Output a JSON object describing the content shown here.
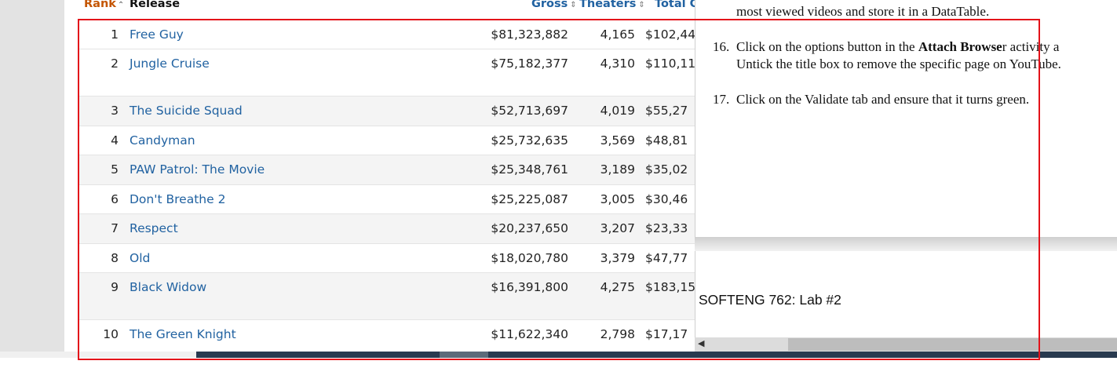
{
  "table": {
    "headers": {
      "rank": "Rank",
      "release": "Release",
      "gross": "Gross",
      "theaters": "Theaters",
      "total": "Total G"
    },
    "rows": [
      {
        "rank": "1",
        "title": "Free Guy",
        "gross": "$81,323,882",
        "theaters": "4,165",
        "total": "$102,44"
      },
      {
        "rank": "2",
        "title": "Jungle Cruise",
        "gross": "$75,182,377",
        "theaters": "4,310",
        "total": "$110,11"
      },
      {
        "rank": "3",
        "title": "The Suicide Squad",
        "gross": "$52,713,697",
        "theaters": "4,019",
        "total": "$55,27"
      },
      {
        "rank": "4",
        "title": "Candyman",
        "gross": "$25,732,635",
        "theaters": "3,569",
        "total": "$48,81"
      },
      {
        "rank": "5",
        "title": "PAW Patrol: The Movie",
        "gross": "$25,348,761",
        "theaters": "3,189",
        "total": "$35,02"
      },
      {
        "rank": "6",
        "title": "Don't Breathe 2",
        "gross": "$25,225,087",
        "theaters": "3,005",
        "total": "$30,46"
      },
      {
        "rank": "7",
        "title": "Respect",
        "gross": "$20,237,650",
        "theaters": "3,207",
        "total": "$23,33"
      },
      {
        "rank": "8",
        "title": "Old",
        "gross": "$18,020,780",
        "theaters": "3,379",
        "total": "$47,77"
      },
      {
        "rank": "9",
        "title": "Black Widow",
        "gross": "$16,391,800",
        "theaters": "4,275",
        "total": "$183,15"
      },
      {
        "rank": "10",
        "title": "The Green Knight",
        "gross": "$11,622,340",
        "theaters": "2,798",
        "total": "$17,17"
      }
    ]
  },
  "document": {
    "line_top": "most viewed videos and store it in a DataTable.",
    "step16_number": "16.",
    "step16_pre": "Click on the options button in the ",
    "step16_bold": "Attach Browse",
    "step16_post": "r activity a",
    "step16_line2": "Untick the title box to remove the specific page on YouTube.",
    "step17_number": "17.",
    "step17_text": "Click on the Validate tab and ensure that it turns green.",
    "page_header": "SOFTENG 762: Lab #2"
  },
  "colors": {
    "link": "#2162a1",
    "rank_header": "#c45500",
    "highlight_box": "#e3121a"
  }
}
